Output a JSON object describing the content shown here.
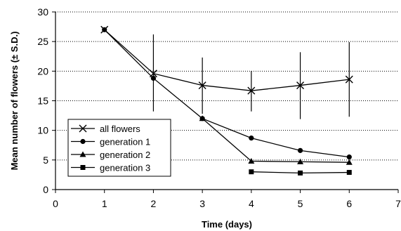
{
  "chart_data": {
    "type": "line",
    "xlabel": "Time (days)",
    "ylabel": "Mean number of flowers (± S.D.)",
    "xlim": [
      0,
      7
    ],
    "ylim": [
      0,
      30
    ],
    "xticks": [
      "0",
      "1",
      "2",
      "3",
      "4",
      "5",
      "6",
      "7"
    ],
    "yticks": [
      "0",
      "5",
      "10",
      "15",
      "20",
      "25",
      "30"
    ],
    "grid": "horizontal dotted",
    "legend_position": "bottom-left",
    "series": [
      {
        "name": "all flowers",
        "marker": "x",
        "x": [
          1,
          2,
          3,
          4,
          5,
          6
        ],
        "y": [
          27,
          19.6,
          17.6,
          16.7,
          17.6,
          18.6
        ],
        "error_low": [
          null,
          13.2,
          12.8,
          13.2,
          11.9,
          12.3
        ],
        "error_high": [
          null,
          26.2,
          22.3,
          20.0,
          23.2,
          24.9
        ]
      },
      {
        "name": "generation 1",
        "marker": "circle",
        "x": [
          1,
          2,
          3,
          4,
          5,
          6
        ],
        "y": [
          27,
          18.8,
          12,
          8.7,
          6.6,
          5.5
        ]
      },
      {
        "name": "generation 2",
        "marker": "triangle",
        "x": [
          3,
          4,
          5,
          6
        ],
        "y": [
          12,
          4.8,
          4.7,
          4.6
        ]
      },
      {
        "name": "generation 3",
        "marker": "square",
        "x": [
          4,
          5,
          6
        ],
        "y": [
          3,
          2.8,
          2.9
        ]
      }
    ]
  }
}
